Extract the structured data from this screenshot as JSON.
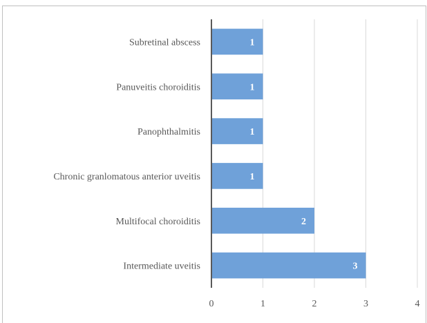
{
  "chart_data": {
    "type": "bar",
    "orientation": "horizontal",
    "categories": [
      "Subretinal abscess",
      "Panuveitis choroiditis",
      "Panophthalmitis",
      "Chronic granlomatous anterior uveitis",
      "Multifocal choroiditis",
      "Intermediate uveitis"
    ],
    "values": [
      1,
      1,
      1,
      1,
      2,
      3
    ],
    "data_labels": [
      "1",
      "1",
      "1",
      "1",
      "2",
      "3"
    ],
    "title": "",
    "xlabel": "",
    "ylabel": "",
    "xlim": [
      0,
      4
    ],
    "x_ticks": [
      "0",
      "1",
      "2",
      "3",
      "4"
    ],
    "grid": "vertical",
    "legend": "none",
    "colors": {
      "bar": "#6fa1d9",
      "grid": "#d9d9d9",
      "axis": "#595959",
      "label": "#595959",
      "data_label": "#ffffff"
    }
  }
}
